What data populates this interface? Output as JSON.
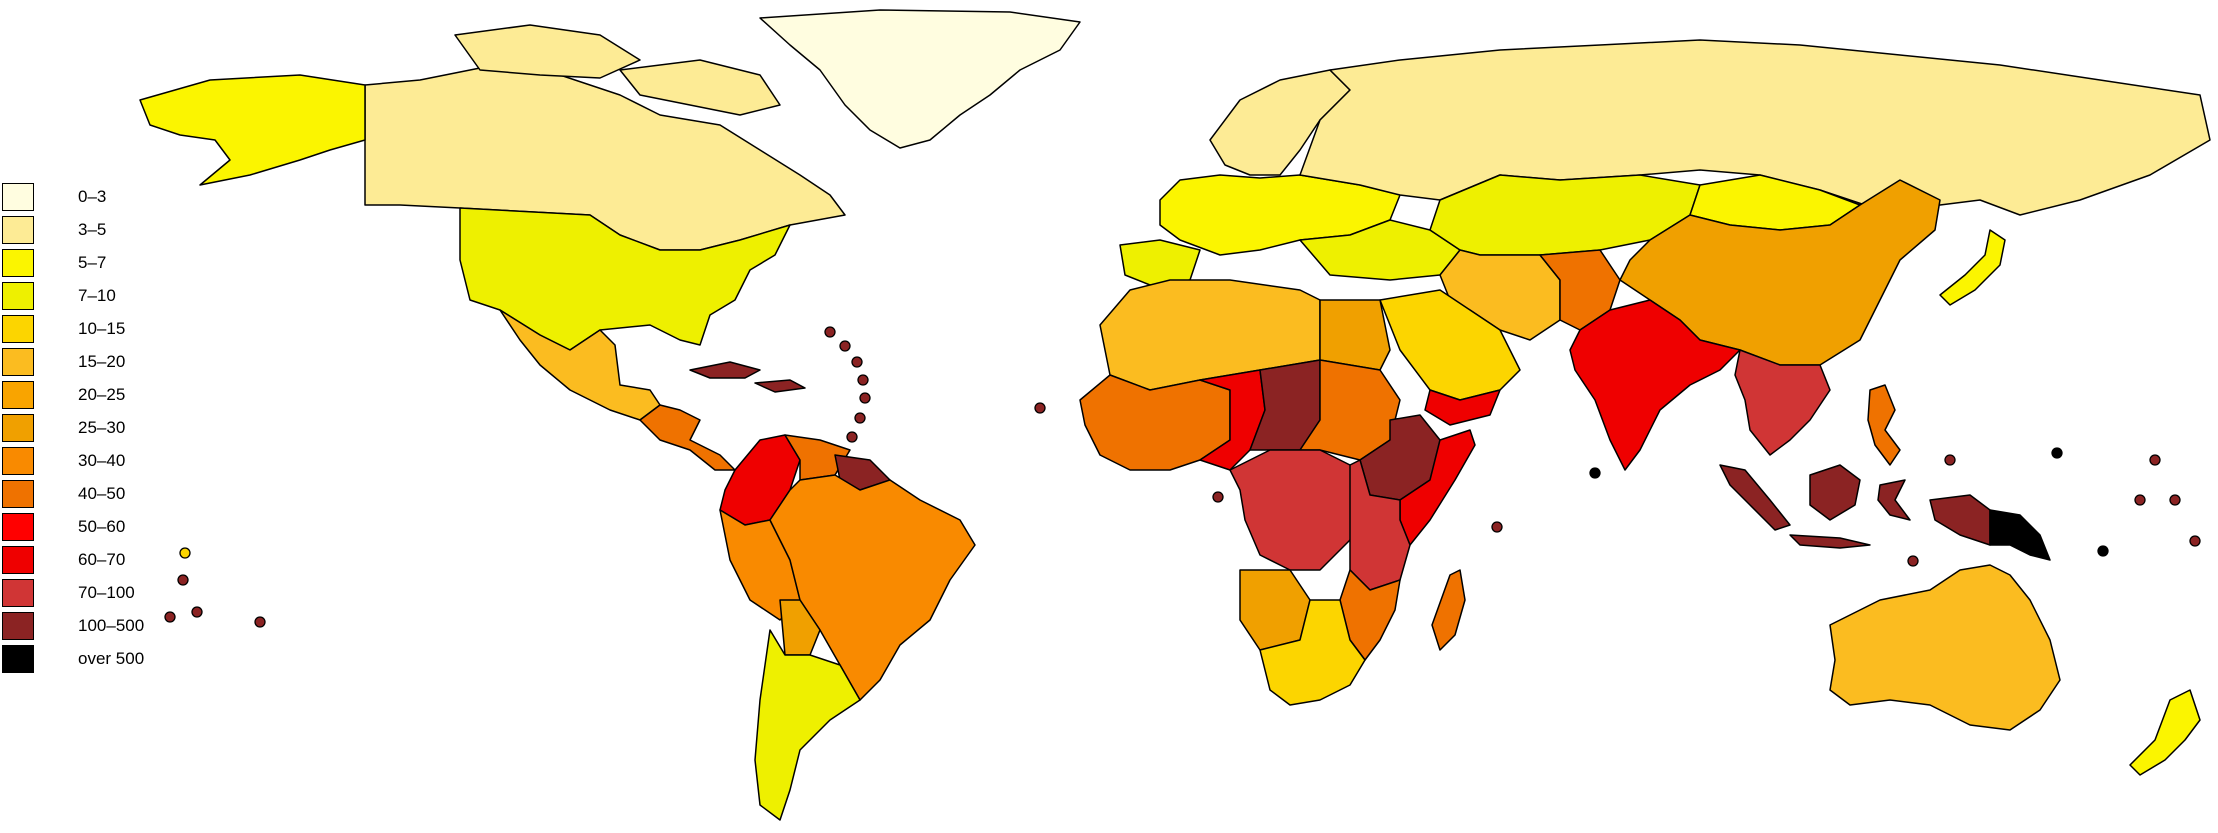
{
  "legend": {
    "items": [
      {
        "label": "0–3",
        "color": "#fffde0"
      },
      {
        "label": "3–5",
        "color": "#fdeb95"
      },
      {
        "label": "5–7",
        "color": "#fbf500"
      },
      {
        "label": "7–10",
        "color": "#eef000"
      },
      {
        "label": "10–15",
        "color": "#fcd500"
      },
      {
        "label": "15–20",
        "color": "#fbbc20"
      },
      {
        "label": "20–25",
        "color": "#f9a400"
      },
      {
        "label": "25–30",
        "color": "#f0a000"
      },
      {
        "label": "30–40",
        "color": "#f98a00"
      },
      {
        "label": "40–50",
        "color": "#ef7200"
      },
      {
        "label": "50–60",
        "color": "#ff0000"
      },
      {
        "label": "60–70",
        "color": "#ef0000"
      },
      {
        "label": "70–100",
        "color": "#d03535"
      },
      {
        "label": "100–500",
        "color": "#8b2323"
      },
      {
        "label": "over 500",
        "color": "#000000"
      }
    ]
  },
  "regions": [
    {
      "name": "greenland",
      "bin": "0–3"
    },
    {
      "name": "canada",
      "bin": "3–5"
    },
    {
      "name": "russia",
      "bin": "3–5"
    },
    {
      "name": "scandinavia",
      "bin": "3–5"
    },
    {
      "name": "alaska",
      "bin": "5–7"
    },
    {
      "name": "usa",
      "bin": "7–10"
    },
    {
      "name": "mexico",
      "bin": "15–20"
    },
    {
      "name": "central-america",
      "bin": "40–50"
    },
    {
      "name": "caribbean",
      "bin": "100–500"
    },
    {
      "name": "colombia",
      "bin": "60–70"
    },
    {
      "name": "venezuela",
      "bin": "40–50"
    },
    {
      "name": "guianas",
      "bin": "100–500"
    },
    {
      "name": "brazil",
      "bin": "30–40"
    },
    {
      "name": "peru",
      "bin": "30–40"
    },
    {
      "name": "bolivia",
      "bin": "25–30"
    },
    {
      "name": "argentina",
      "bin": "7–10"
    },
    {
      "name": "western-europe",
      "bin": "5–7"
    },
    {
      "name": "eastern-europe",
      "bin": "7–10"
    },
    {
      "name": "iberia",
      "bin": "7–10"
    },
    {
      "name": "north-africa",
      "bin": "15–20"
    },
    {
      "name": "egypt",
      "bin": "25–30"
    },
    {
      "name": "west-africa",
      "bin": "40–50"
    },
    {
      "name": "sahel",
      "bin": "60–70"
    },
    {
      "name": "chad",
      "bin": "100–500"
    },
    {
      "name": "sudan",
      "bin": "40–50"
    },
    {
      "name": "ethiopia",
      "bin": "100–500"
    },
    {
      "name": "somalia",
      "bin": "60–70"
    },
    {
      "name": "central-africa",
      "bin": "70–100"
    },
    {
      "name": "east-africa",
      "bin": "70–100"
    },
    {
      "name": "angola",
      "bin": "25–30"
    },
    {
      "name": "southern-africa",
      "bin": "10–15"
    },
    {
      "name": "mozambique",
      "bin": "40–50"
    },
    {
      "name": "madagascar",
      "bin": "40–50"
    },
    {
      "name": "arabia",
      "bin": "10–15"
    },
    {
      "name": "yemen",
      "bin": "60–70"
    },
    {
      "name": "iran",
      "bin": "15–20"
    },
    {
      "name": "central-asia",
      "bin": "7–10"
    },
    {
      "name": "mongolia",
      "bin": "5–7"
    },
    {
      "name": "afghanistan",
      "bin": "40–50"
    },
    {
      "name": "india",
      "bin": "60–70"
    },
    {
      "name": "china",
      "bin": "25–30"
    },
    {
      "name": "indochina",
      "bin": "70–100"
    },
    {
      "name": "philippines",
      "bin": "40–50"
    },
    {
      "name": "indonesia",
      "bin": "100–500"
    },
    {
      "name": "papua-new-guinea",
      "bin": "over 500"
    },
    {
      "name": "japan",
      "bin": "5–7"
    },
    {
      "name": "australia",
      "bin": "15–20"
    },
    {
      "name": "new-zealand",
      "bin": "5–7"
    }
  ]
}
